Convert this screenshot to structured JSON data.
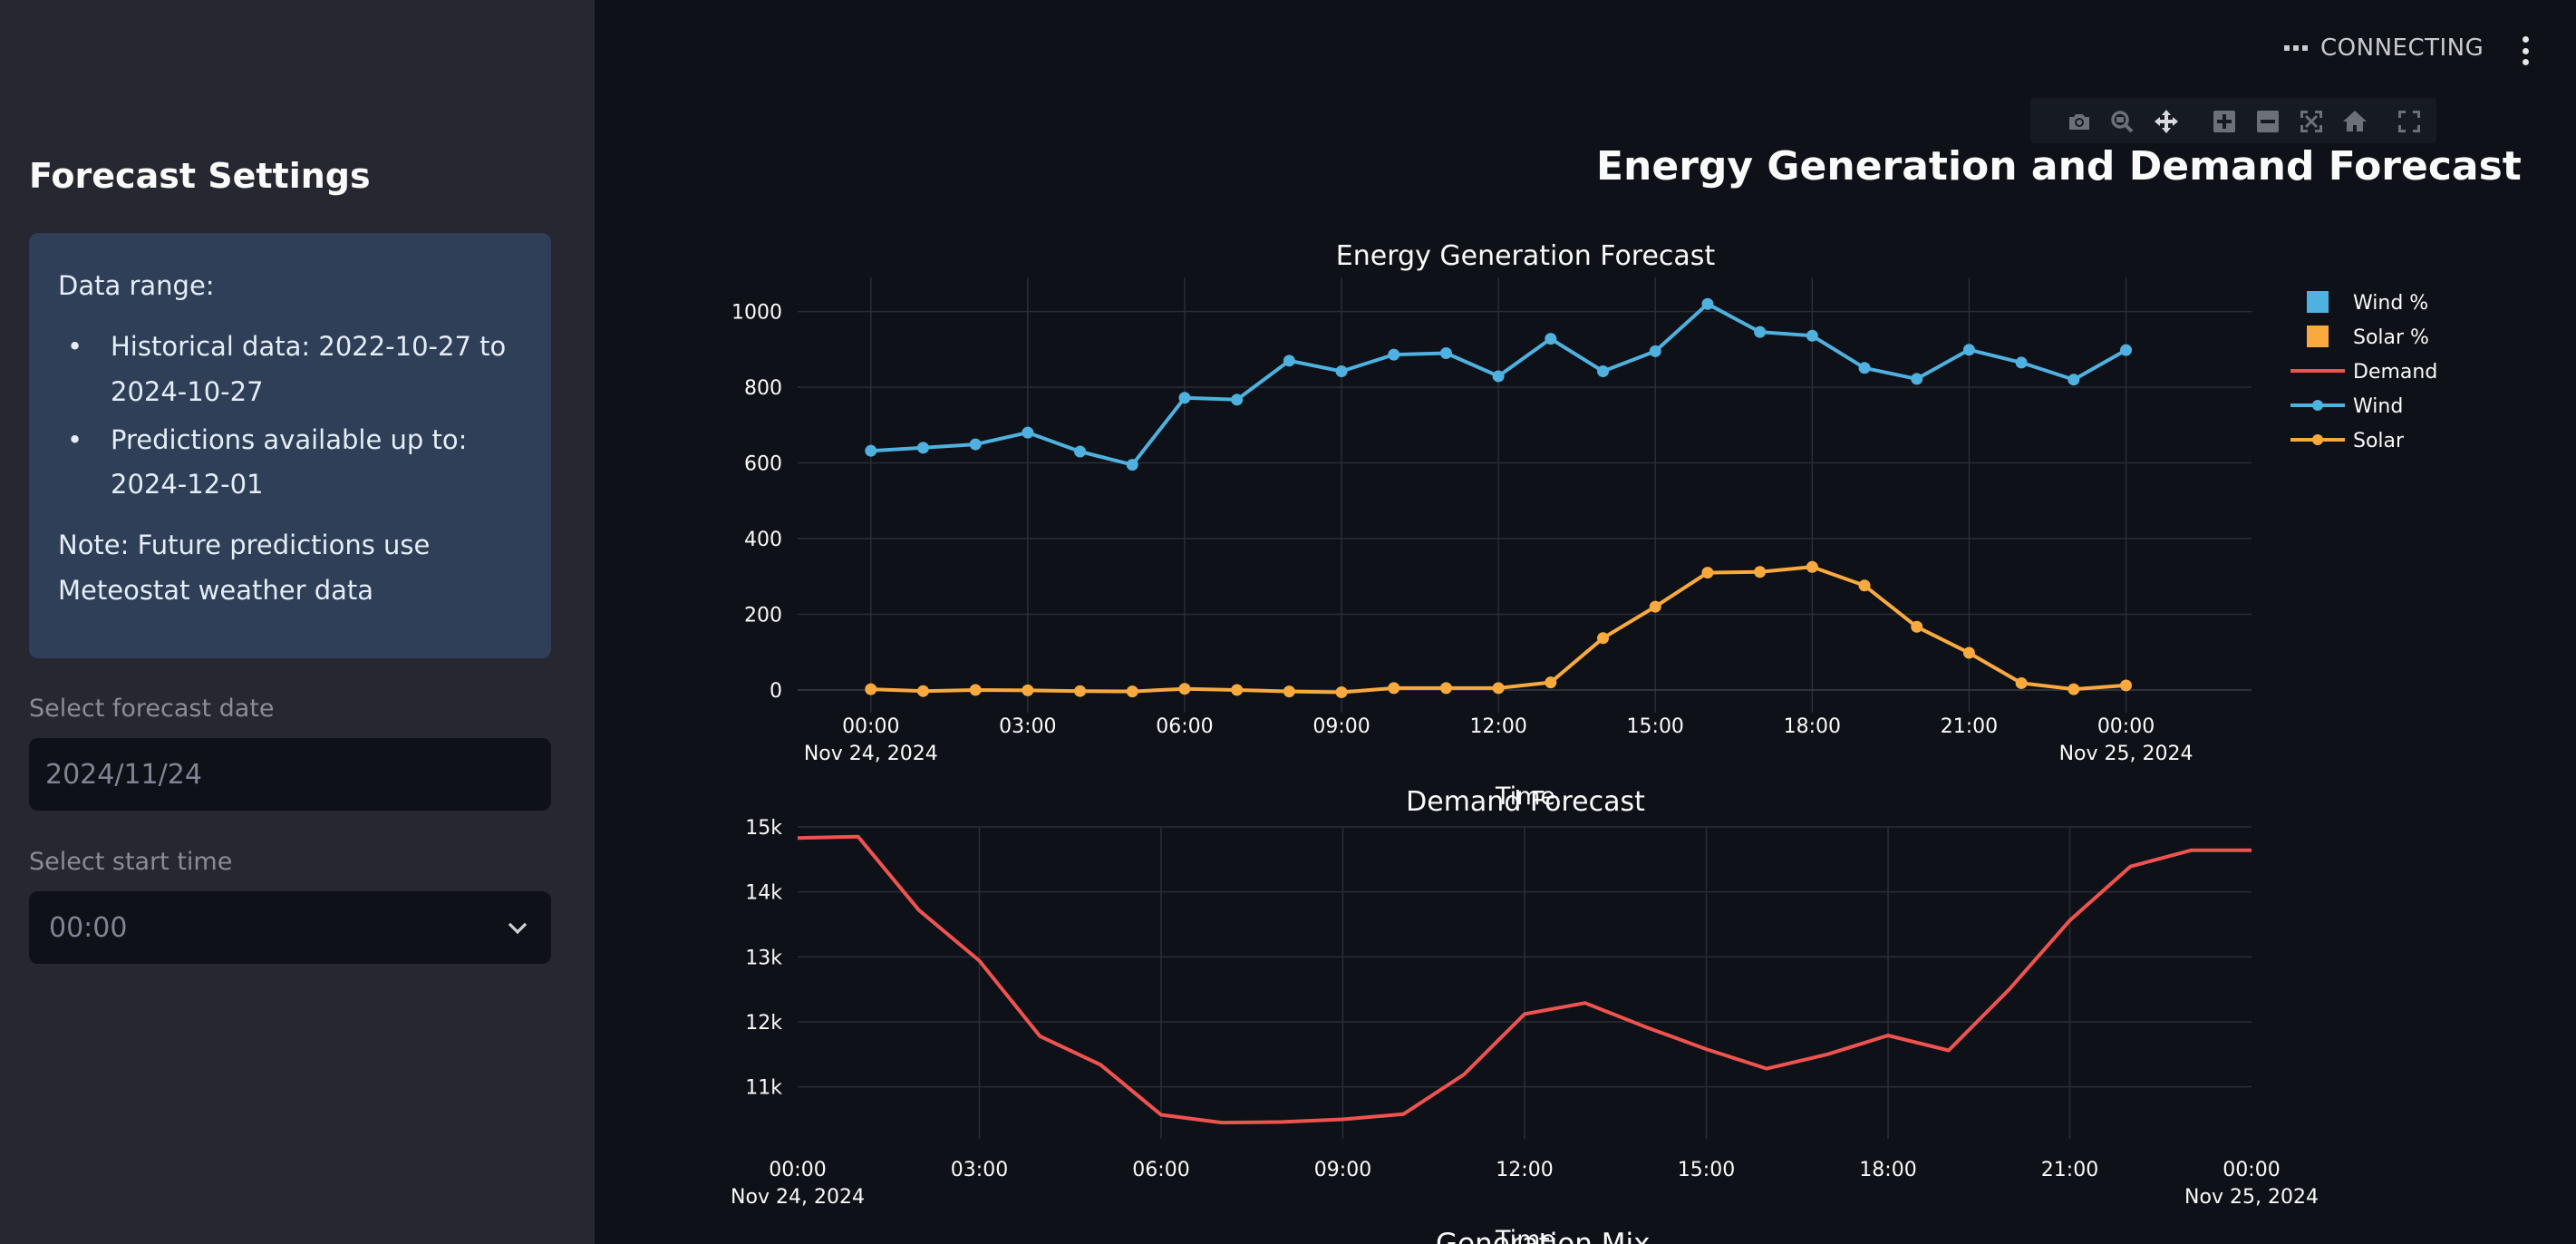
{
  "sidebar": {
    "title": "Forecast Settings",
    "info": {
      "heading": "Data range:",
      "items": [
        "Historical data: 2022-10-27 to 2024-10-27",
        "Predictions available up to: 2024-12-01"
      ],
      "note": "Note: Future predictions use Meteostat weather data"
    },
    "date_label": "Select forecast date",
    "date_value": "2024/11/24",
    "time_label": "Select start time",
    "time_value": "00:00"
  },
  "header": {
    "status": "CONNECTING",
    "menu_icon": "vertical-dots-icon"
  },
  "modebar": [
    "camera-icon",
    "zoom-icon",
    "pan-icon",
    "zoom-in-icon",
    "zoom-out-icon",
    "autoscale-icon",
    "reset-axes-icon",
    "fullscreen-icon"
  ],
  "main": {
    "title": "Energy Generation and Demand Forecast",
    "next_section_title": "Generation Mix"
  },
  "colors": {
    "wind": "#4fb1e0",
    "solar": "#f9aa3e",
    "demand": "#ef5350",
    "background": "#0e1117",
    "sidebar": "#262730",
    "info_box": "#2e3f57"
  },
  "chart_data": [
    {
      "type": "line",
      "title": "Energy Generation Forecast",
      "xlabel": "Time",
      "x": [
        "2024-11-24 00:00",
        "2024-11-24 01:00",
        "2024-11-24 02:00",
        "2024-11-24 03:00",
        "2024-11-24 04:00",
        "2024-11-24 05:00",
        "2024-11-24 06:00",
        "2024-11-24 07:00",
        "2024-11-24 08:00",
        "2024-11-24 09:00",
        "2024-11-24 10:00",
        "2024-11-24 11:00",
        "2024-11-24 12:00",
        "2024-11-24 13:00",
        "2024-11-24 14:00",
        "2024-11-24 15:00",
        "2024-11-24 16:00",
        "2024-11-24 17:00",
        "2024-11-24 18:00",
        "2024-11-24 19:00",
        "2024-11-24 20:00",
        "2024-11-24 21:00",
        "2024-11-24 22:00",
        "2024-11-24 23:00",
        "2024-11-25 00:00"
      ],
      "series": [
        {
          "name": "Wind",
          "values": [
            632,
            640,
            649,
            680,
            630,
            595,
            772,
            767,
            870,
            842,
            886,
            890,
            829,
            928,
            842,
            895,
            1020,
            946,
            936,
            851,
            822,
            899,
            865,
            820,
            898
          ]
        },
        {
          "name": "Solar",
          "values": [
            2,
            -3,
            0,
            -1,
            -3,
            -4,
            3,
            0,
            -4,
            -6,
            5,
            5,
            5,
            20,
            137,
            220,
            310,
            312,
            325,
            276,
            167,
            98,
            18,
            2,
            12
          ]
        }
      ],
      "legend": [
        "Wind %",
        "Solar %",
        "Demand",
        "Wind",
        "Solar"
      ],
      "yticks": [
        "0",
        "200",
        "400",
        "600",
        "800",
        "1000"
      ],
      "xticks": [
        "00:00",
        "03:00",
        "06:00",
        "09:00",
        "12:00",
        "15:00",
        "18:00",
        "21:00",
        "00:00"
      ],
      "xtick_dates": [
        "Nov 24, 2024",
        "Nov 25, 2024"
      ],
      "ylim": [
        -60,
        1090
      ],
      "legend_position": "top-right",
      "grid": true
    },
    {
      "type": "line",
      "title": "Demand Forecast",
      "xlabel": "Time",
      "x": [
        "2024-11-24 00:00",
        "2024-11-24 01:00",
        "2024-11-24 02:00",
        "2024-11-24 03:00",
        "2024-11-24 04:00",
        "2024-11-24 05:00",
        "2024-11-24 06:00",
        "2024-11-24 07:00",
        "2024-11-24 08:00",
        "2024-11-24 09:00",
        "2024-11-24 10:00",
        "2024-11-24 11:00",
        "2024-11-24 12:00",
        "2024-11-24 13:00",
        "2024-11-24 14:00",
        "2024-11-24 15:00",
        "2024-11-24 16:00",
        "2024-11-24 17:00",
        "2024-11-24 18:00",
        "2024-11-24 19:00",
        "2024-11-24 20:00",
        "2024-11-24 21:00",
        "2024-11-24 22:00",
        "2024-11-24 23:00",
        "2024-11-25 00:00"
      ],
      "series": [
        {
          "name": "Demand",
          "values": [
            14830,
            14850,
            13720,
            12940,
            11780,
            11340,
            10570,
            10450,
            10460,
            10500,
            10580,
            11190,
            12120,
            12290,
            11920,
            11580,
            11280,
            11500,
            11790,
            11560,
            12500,
            13560,
            14390,
            14640,
            14640
          ]
        }
      ],
      "yticks": [
        "11k",
        "12k",
        "13k",
        "14k",
        "15k"
      ],
      "xticks": [
        "00:00",
        "03:00",
        "06:00",
        "09:00",
        "12:00",
        "15:00",
        "18:00",
        "21:00",
        "00:00"
      ],
      "xtick_dates": [
        "Nov 24, 2024",
        "Nov 25, 2024"
      ],
      "ylim": [
        10200,
        15000
      ],
      "grid": true
    }
  ]
}
